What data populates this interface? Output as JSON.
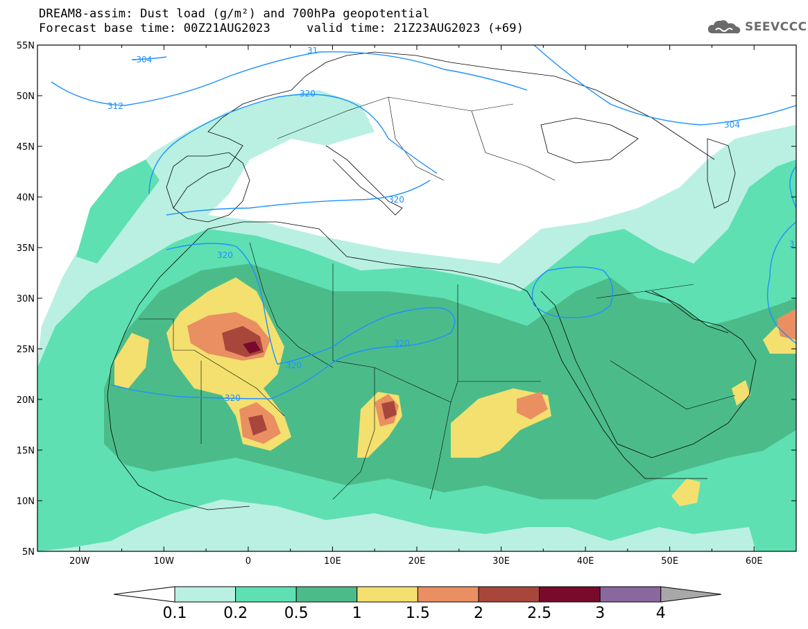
{
  "title": {
    "line1": "DREAM8-assim: Dust load (g/m²) and 700hPa geopotential",
    "line2": "Forecast base time: 00Z21AUG2023     valid time: 21Z23AUG2023 (+69)"
  },
  "logo": {
    "text": "SEEVCCC",
    "icon": "cloud-icon"
  },
  "map": {
    "lon_range": [
      -25,
      65
    ],
    "lat_range": [
      5,
      55
    ],
    "lon_ticks": [
      "20W",
      "10W",
      "0",
      "10E",
      "20E",
      "30E",
      "40E",
      "50E",
      "60E"
    ],
    "lat_ticks": [
      "5N",
      "10N",
      "15N",
      "20N",
      "25N",
      "30N",
      "35N",
      "40N",
      "45N",
      "50N",
      "55N"
    ],
    "contour_labels": [
      "-304",
      "312",
      "31",
      "320",
      "320",
      "320",
      "320",
      "320",
      "320",
      "304",
      "3"
    ]
  },
  "colorbar": {
    "levels": [
      "0.1",
      "0.2",
      "0.5",
      "1",
      "1.5",
      "2",
      "2.5",
      "3",
      "4"
    ],
    "colors": [
      "#ffffff",
      "#b9f0e2",
      "#5ee0b2",
      "#4cbb8a",
      "#f3e06e",
      "#ea8f62",
      "#a9463b",
      "#7a0a2c",
      "#8b67a0",
      "#a8a8a8"
    ]
  },
  "colors": {
    "geopotential_contour": "#1e90ff",
    "borders": "#000000"
  }
}
